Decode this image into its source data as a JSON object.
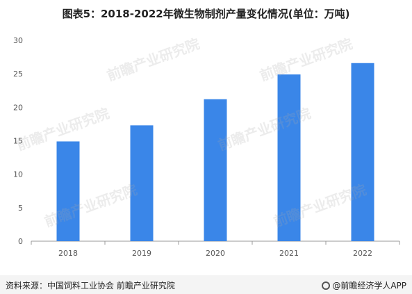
{
  "title": "图表5：2018-2022年微生物制剂产量变化情况(单位：万吨)",
  "footer": {
    "source": "资料来源：中国饲料工业协会 前瞻产业研究院",
    "brand": "@前瞻经济学人APP",
    "brand_icon": "qianzhan-logo-icon"
  },
  "watermark": "前瞻产业研究院",
  "colors": {
    "bar": "#3a86e8",
    "axis": "#999999",
    "text": "#555555"
  },
  "chart_data": {
    "type": "bar",
    "title": "图表5：2018-2022年微生物制剂产量变化情况(单位：万吨)",
    "categories": [
      "2018",
      "2019",
      "2020",
      "2021",
      "2022"
    ],
    "values": [
      14.9,
      17.3,
      21.2,
      24.9,
      26.6
    ],
    "ylim": [
      0,
      30
    ],
    "yticks": [
      0,
      5,
      10,
      15,
      20,
      25,
      30
    ],
    "xlabel": "",
    "ylabel": "",
    "grid": false,
    "legend": "none"
  }
}
